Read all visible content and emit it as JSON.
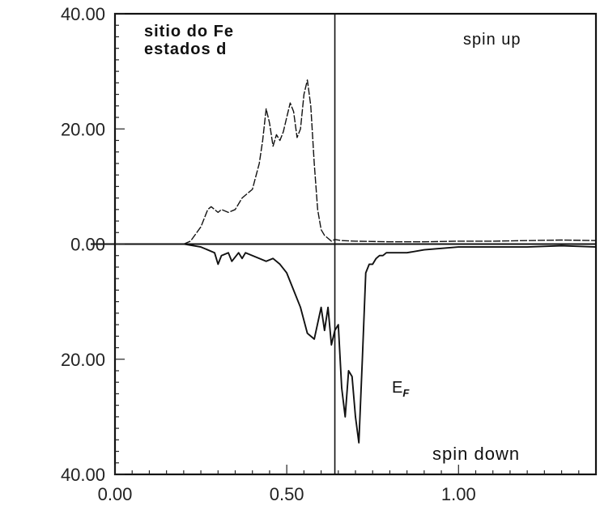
{
  "chart_data": {
    "type": "line",
    "title": "",
    "xlabel": "",
    "ylabel": "",
    "xlim": [
      0.0,
      1.4
    ],
    "ylim": [
      -40,
      40
    ],
    "y_tick_labels": [
      "40.00",
      "20.00",
      "0.00",
      "20.00",
      "40.00"
    ],
    "y_tick_values": [
      40,
      20,
      0,
      -20,
      -40
    ],
    "x_tick_labels": [
      "0.00",
      "0.50",
      "1.00"
    ],
    "x_tick_values": [
      0.0,
      0.5,
      1.0
    ],
    "fermi_level": 0.64,
    "fermi_label": "E",
    "fermi_label_sub": "F",
    "annotations": {
      "site_line1": "sitio do Fe",
      "site_line2": "estados d",
      "spin_up": "spin up",
      "spin_down": "spin down"
    },
    "series": [
      {
        "values_label": "spin up",
        "x": [
          0.2,
          0.22,
          0.25,
          0.27,
          0.28,
          0.3,
          0.31,
          0.33,
          0.35,
          0.37,
          0.38,
          0.4,
          0.42,
          0.43,
          0.44,
          0.45,
          0.46,
          0.47,
          0.48,
          0.49,
          0.5,
          0.51,
          0.52,
          0.53,
          0.54,
          0.55,
          0.56,
          0.57,
          0.58,
          0.59,
          0.6,
          0.61,
          0.62,
          0.63,
          0.64,
          0.66,
          0.7,
          0.8,
          0.9,
          1.0,
          1.1,
          1.2,
          1.3,
          1.4
        ],
        "y": [
          0.0,
          0.5,
          3.0,
          6.0,
          6.5,
          5.5,
          6.0,
          5.5,
          6.0,
          8.0,
          8.5,
          9.5,
          14.0,
          18.0,
          23.5,
          21.0,
          17.0,
          19.0,
          18.0,
          19.5,
          22.0,
          24.5,
          23.0,
          18.5,
          20.0,
          26.0,
          28.5,
          24.0,
          14.0,
          6.0,
          2.5,
          1.5,
          1.0,
          0.5,
          0.8,
          0.6,
          0.5,
          0.4,
          0.4,
          0.5,
          0.5,
          0.6,
          0.7,
          0.6
        ]
      },
      {
        "values_label": "spin down",
        "x": [
          0.2,
          0.25,
          0.29,
          0.3,
          0.31,
          0.33,
          0.34,
          0.36,
          0.37,
          0.38,
          0.4,
          0.42,
          0.44,
          0.46,
          0.48,
          0.5,
          0.52,
          0.54,
          0.56,
          0.58,
          0.6,
          0.61,
          0.62,
          0.63,
          0.64,
          0.65,
          0.66,
          0.67,
          0.68,
          0.69,
          0.7,
          0.71,
          0.72,
          0.73,
          0.74,
          0.75,
          0.76,
          0.77,
          0.78,
          0.79,
          0.8,
          0.82,
          0.85,
          0.9,
          1.0,
          1.1,
          1.2,
          1.3,
          1.4
        ],
        "y": [
          0.0,
          -0.5,
          -1.5,
          -3.5,
          -2.0,
          -1.5,
          -3.0,
          -1.5,
          -2.5,
          -1.5,
          -2.0,
          -2.5,
          -3.0,
          -2.5,
          -3.5,
          -5.0,
          -8.0,
          -11.0,
          -15.5,
          -16.5,
          -11.0,
          -15.0,
          -11.0,
          -17.5,
          -15.0,
          -14.0,
          -25.0,
          -30.0,
          -22.0,
          -23.0,
          -30.0,
          -34.5,
          -20.0,
          -5.0,
          -3.5,
          -3.5,
          -2.5,
          -2.0,
          -2.0,
          -1.5,
          -1.5,
          -1.5,
          -1.5,
          -1.0,
          -0.5,
          -0.5,
          -0.5,
          -0.3,
          -0.5
        ]
      }
    ]
  }
}
